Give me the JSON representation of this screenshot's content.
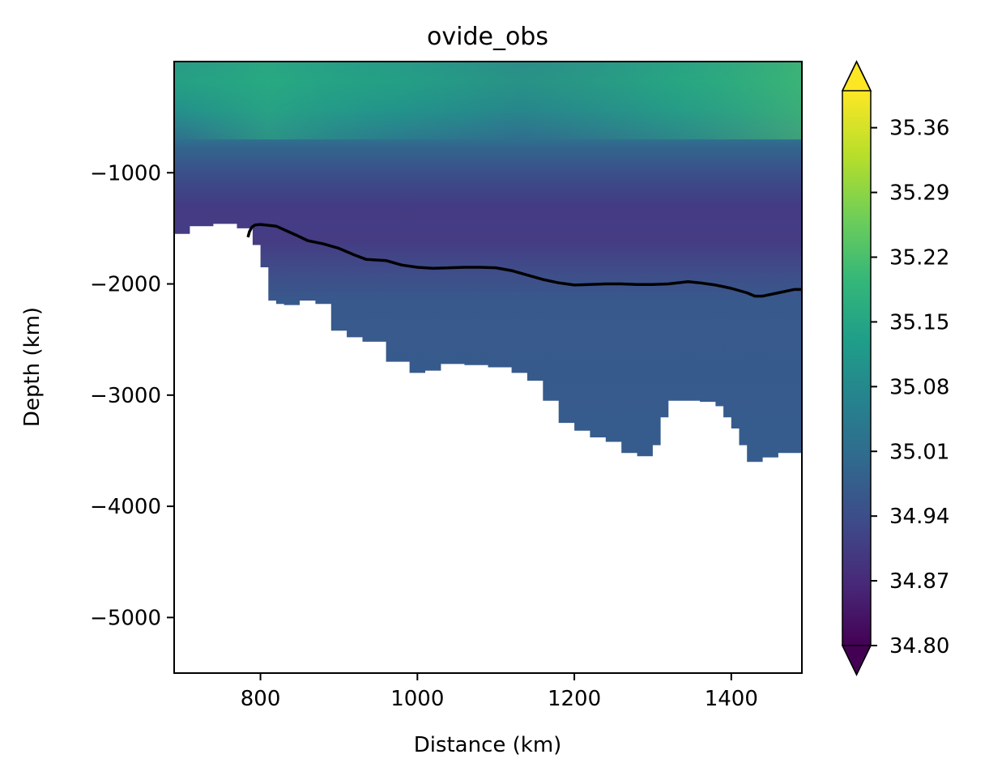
{
  "chart_data": {
    "type": "heatmap",
    "title": "ovide_obs",
    "xlabel": "Distance (km)",
    "ylabel": "Depth (km)",
    "xlim": [
      690,
      1490
    ],
    "ylim": [
      -5500,
      0
    ],
    "x_ticks": [
      800,
      1000,
      1200,
      1400
    ],
    "x_tick_labels": [
      "800",
      "1000",
      "1200",
      "1400"
    ],
    "y_ticks": [
      -1000,
      -2000,
      -3000,
      -4000,
      -5000
    ],
    "y_tick_labels": [
      "−1000",
      "−2000",
      "−3000",
      "−4000",
      "−5000"
    ],
    "colorbar": {
      "colormap": "viridis",
      "extend": "both",
      "vmin": 34.8,
      "vmax": 35.4,
      "ticks": [
        34.8,
        34.87,
        34.94,
        35.01,
        35.08,
        35.15,
        35.22,
        35.29,
        35.36
      ],
      "tick_labels": [
        "34.80",
        "34.87",
        "34.94",
        "35.01",
        "35.08",
        "35.15",
        "35.22",
        "35.29",
        "35.36"
      ]
    },
    "bathymetry": {
      "x": [
        690,
        710,
        740,
        770,
        790,
        800,
        810,
        820,
        830,
        850,
        870,
        890,
        910,
        930,
        960,
        990,
        1010,
        1030,
        1060,
        1090,
        1120,
        1140,
        1160,
        1180,
        1200,
        1220,
        1240,
        1260,
        1280,
        1300,
        1310,
        1320,
        1340,
        1360,
        1380,
        1390,
        1400,
        1410,
        1420,
        1440,
        1460,
        1480,
        1490
      ],
      "depth": [
        -1650,
        -1550,
        -1480,
        -1460,
        -1500,
        -1650,
        -1850,
        -2150,
        -2180,
        -2190,
        -2150,
        -2180,
        -2420,
        -2480,
        -2520,
        -2700,
        -2800,
        -2780,
        -2720,
        -2730,
        -2750,
        -2800,
        -2870,
        -3050,
        -3250,
        -3320,
        -3380,
        -3420,
        -3520,
        -3550,
        -3450,
        -3200,
        -3050,
        -3050,
        -3060,
        -3100,
        -3200,
        -3300,
        -3450,
        -3600,
        -3560,
        -3520,
        -3520
      ]
    },
    "contour_line": {
      "x": [
        784,
        786,
        789,
        793,
        800,
        820,
        845,
        860,
        880,
        900,
        920,
        935,
        960,
        980,
        1000,
        1020,
        1040,
        1060,
        1080,
        1100,
        1120,
        1140,
        1160,
        1180,
        1200,
        1220,
        1240,
        1260,
        1280,
        1300,
        1320,
        1345,
        1360,
        1380,
        1400,
        1420,
        1430,
        1440,
        1460,
        1480,
        1490
      ],
      "depth": [
        -1580,
        -1530,
        -1490,
        -1470,
        -1465,
        -1480,
        -1560,
        -1610,
        -1640,
        -1680,
        -1740,
        -1780,
        -1790,
        -1830,
        -1850,
        -1860,
        -1855,
        -1850,
        -1850,
        -1855,
        -1880,
        -1920,
        -1960,
        -1990,
        -2010,
        -2005,
        -2000,
        -2000,
        -2005,
        -2005,
        -2000,
        -1980,
        -1990,
        -2010,
        -2040,
        -2080,
        -2110,
        -2110,
        -2080,
        -2050,
        -2050
      ]
    },
    "field_description_values": {
      "surface_max": 35.2,
      "intermediate_min": 34.9,
      "deep_value": 34.97
    }
  }
}
